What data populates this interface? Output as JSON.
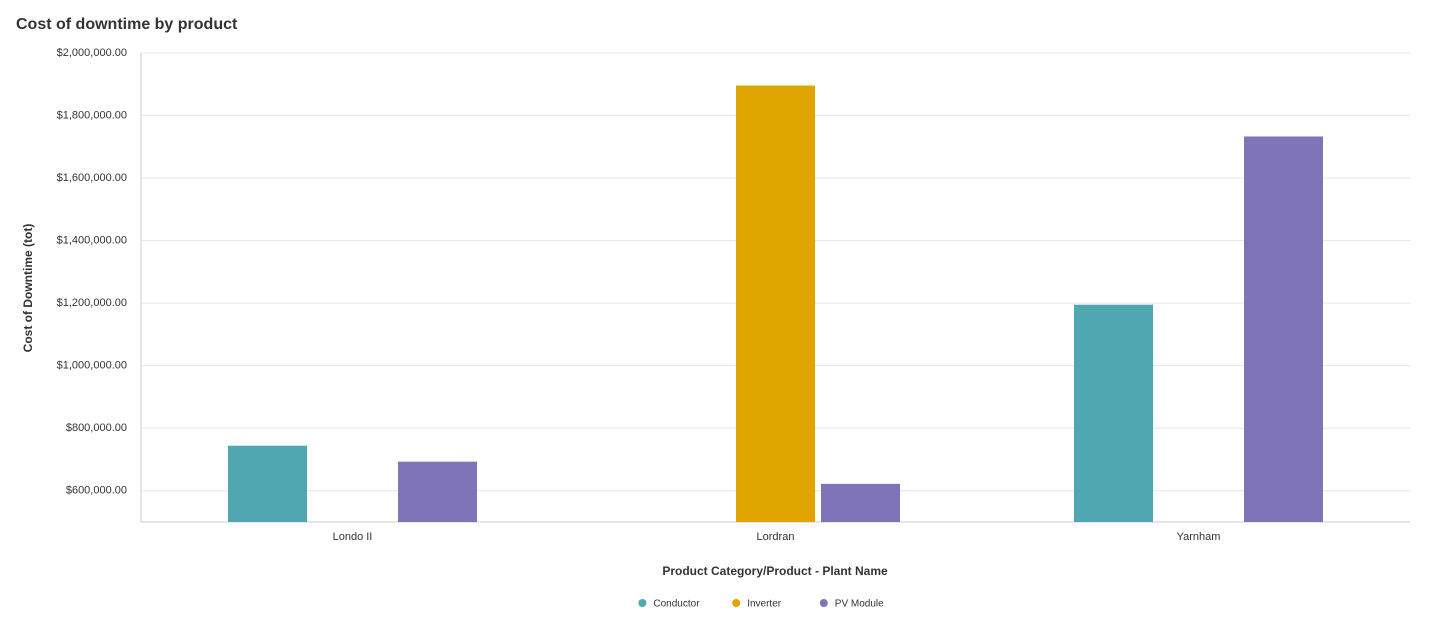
{
  "chart_data": {
    "type": "bar",
    "title": "Cost of downtime by product",
    "x_label": "Product Category/Product - Plant Name",
    "y_label": "Cost of Downtime (tot)",
    "categories": [
      "Londo II",
      "Lordran",
      "Yarnham"
    ],
    "series": [
      {
        "name": "Conductor",
        "color": "#50a6b1",
        "values": [
          744000,
          null,
          1195000
        ]
      },
      {
        "name": "Inverter",
        "color": "#e0a500",
        "values": [
          null,
          1896000,
          null
        ]
      },
      {
        "name": "PV Module",
        "color": "#8074b8",
        "values": [
          693000,
          622000,
          1733000
        ]
      }
    ],
    "ylim": [
      500000,
      2000000
    ],
    "yticks": [
      {
        "value": 600000,
        "label": "$600,000.00"
      },
      {
        "value": 800000,
        "label": "$800,000.00"
      },
      {
        "value": 1000000,
        "label": "$1,000,000.00"
      },
      {
        "value": 1200000,
        "label": "$1,200,000.00"
      },
      {
        "value": 1400000,
        "label": "$1,400,000.00"
      },
      {
        "value": 1600000,
        "label": "$1,600,000.00"
      },
      {
        "value": 1800000,
        "label": "$1,800,000.00"
      },
      {
        "value": 2000000,
        "label": "$2,000,000.00"
      }
    ],
    "grid": true,
    "legend": "bottom"
  }
}
